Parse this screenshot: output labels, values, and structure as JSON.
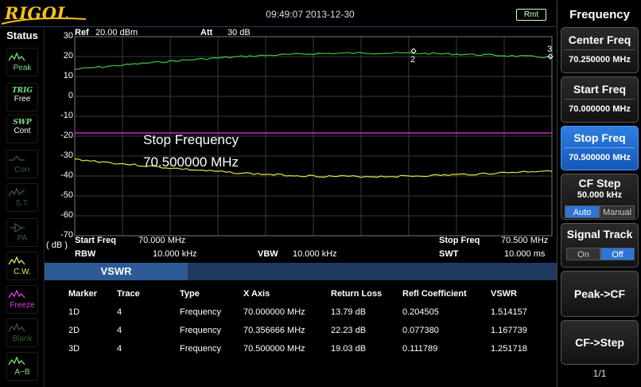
{
  "topbar": {
    "brand": "RIGOL",
    "timestamp": "09:49:07 2013-12-30",
    "remote": "Rmt"
  },
  "status": {
    "title": "Status",
    "items": [
      {
        "label": "Peak",
        "icon": "peak-icon",
        "color": "#7fe07f"
      },
      {
        "label": "Free",
        "tag": "TRIG",
        "icon": "trig-icon",
        "color": "#7fe07f"
      },
      {
        "label": "Cont",
        "tag": "SWP",
        "icon": "sweep-icon",
        "color": "#7fe07f"
      },
      {
        "label": "Corr",
        "icon": "corr-icon",
        "color": "#3a5a3a"
      },
      {
        "label": "S.T.",
        "icon": "st-icon",
        "color": "#3a5a3a"
      },
      {
        "label": "PA",
        "icon": "pa-icon",
        "color": "#3a5a3a"
      },
      {
        "label": "C.W.",
        "icon": "cw-icon",
        "color": "#e8e860"
      },
      {
        "label": "Freeze",
        "icon": "freeze-icon",
        "color": "#e040e0"
      },
      {
        "label": "Blank",
        "icon": "blank-icon",
        "color": "#3a5a3a"
      },
      {
        "label": "A−B",
        "icon": "a-minus-b-icon",
        "color": "#7fe07f"
      }
    ]
  },
  "plot": {
    "ref_label": "Ref",
    "ref_value": "20.00 dBm",
    "att_label": "Att",
    "att_value": "30 dB",
    "unit": "( dB )",
    "y_ticks": [
      "30",
      "20",
      "10",
      "0",
      "-10",
      "-20",
      "-30",
      "-40",
      "-50",
      "-60",
      "-70"
    ],
    "marker_labels": [
      "2",
      "3"
    ],
    "overlay_title": "Stop Frequency",
    "overlay_value": "70.500000 MHz",
    "colors": {
      "trace_green": "#3ec83e",
      "trace_yellow": "#e6e24a",
      "limit_magenta": "#d020d0",
      "grid": "#3a3a3a"
    },
    "footer": {
      "start_freq_label": "Start Freq",
      "start_freq_value": "70.000 MHz",
      "stop_freq_label": "Stop Freq",
      "stop_freq_value": "70.500 MHz",
      "rbw_label": "RBW",
      "rbw_value": "10.000 kHz",
      "vbw_label": "VBW",
      "vbw_value": "10.000 kHz",
      "swt_label": "SWT",
      "swt_value": "10.000 ms"
    }
  },
  "table": {
    "tab": "VSWR",
    "headers": [
      "Marker",
      "Trace",
      "Type",
      "X Axis",
      "Return Loss",
      "Refl Coefficient",
      "VSWR"
    ],
    "rows": [
      [
        "1D",
        "4",
        "Frequency",
        "70.000000 MHz",
        "13.79 dB",
        "0.204505",
        "1.514157"
      ],
      [
        "2D",
        "4",
        "Frequency",
        "70.356666 MHz",
        "22.23 dB",
        "0.077380",
        "1.167739"
      ],
      [
        "3D",
        "4",
        "Frequency",
        "70.500000 MHz",
        "19.03 dB",
        "0.111789",
        "1.251718"
      ]
    ]
  },
  "menu": {
    "title": "Frequency",
    "center_freq": {
      "label": "Center Freq",
      "value": "70.250000 MHz"
    },
    "start_freq": {
      "label": "Start Freq",
      "value": "70.000000 MHz"
    },
    "stop_freq": {
      "label": "Stop Freq",
      "value": "70.500000 MHz"
    },
    "cf_step": {
      "label": "CF Step",
      "value": "50.000 kHz",
      "opt_a": "Auto",
      "opt_b": "Manual"
    },
    "signal_track": {
      "label": "Signal Track",
      "opt_a": "On",
      "opt_b": "Off"
    },
    "peak_cf": "Peak->CF",
    "cf_step_btn": "CF->Step",
    "page": "1/1"
  }
}
